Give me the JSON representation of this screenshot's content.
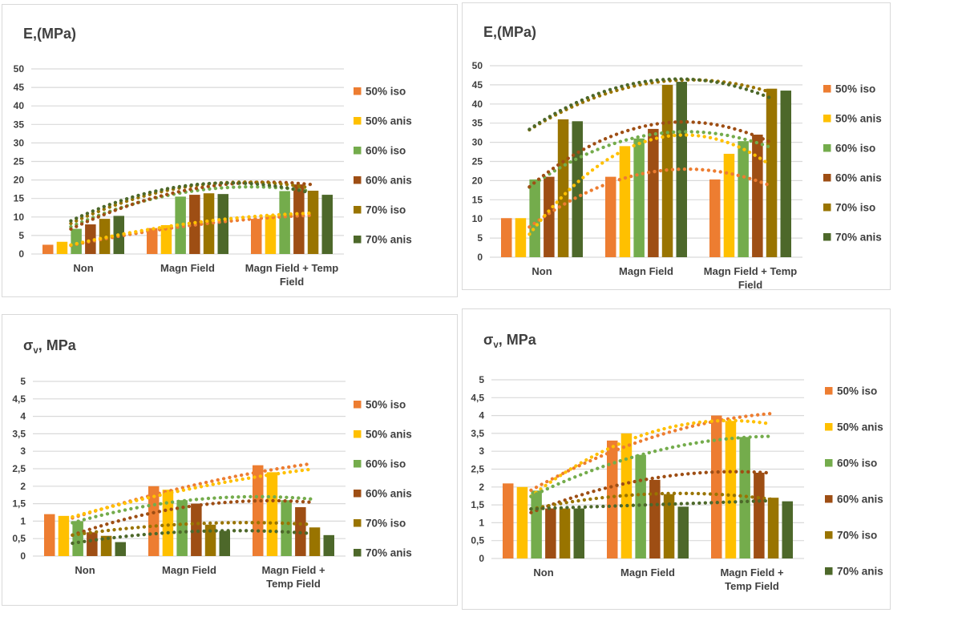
{
  "colors": {
    "background": "#FFFFFF",
    "panel_border": "#D9D9D9",
    "grid": "#D9D9D9",
    "text": "#404040"
  },
  "legend": {
    "position": "right",
    "entries": [
      "50% iso",
      "50% anis",
      "60% iso",
      "60% anis",
      "70% iso",
      "70% anis"
    ]
  },
  "series_palette": [
    {
      "name": "50% iso",
      "color": "#ED7D31"
    },
    {
      "name": "50% anis",
      "color": "#FFC000"
    },
    {
      "name": "60% iso",
      "color": "#74AC4C"
    },
    {
      "name": "60% anis",
      "color": "#9E4E14"
    },
    {
      "name": "70% iso",
      "color": "#997400"
    },
    {
      "name": "70% anis",
      "color": "#4D682A"
    }
  ],
  "chart_data": [
    {
      "id": "e-mpa-left",
      "type": "bar",
      "title": "E,(MPa)",
      "title_parts": null,
      "xlabel": "",
      "ylabel": "E,(MPa)",
      "ylim": [
        0,
        50
      ],
      "ystep": 5,
      "decimal_comma": false,
      "grid": true,
      "legend_position": "right",
      "categories": [
        "Non",
        "Magn Field",
        "Magn Field + Temp Field"
      ],
      "category_label_lines": [
        [
          "Non"
        ],
        [
          "Magn Field"
        ],
        [
          "Magn Field + Temp",
          "Field"
        ]
      ],
      "series": [
        {
          "name": "50% iso",
          "color": "#ED7D31",
          "values": [
            2.5,
            7.0,
            9.5
          ],
          "trend": [
            3.0,
            7.6,
            10.2
          ]
        },
        {
          "name": "50% anis",
          "color": "#FFC000",
          "values": [
            3.3,
            7.8,
            10.5
          ],
          "trend": [
            3.2,
            8.2,
            10.8
          ]
        },
        {
          "name": "60% iso",
          "color": "#74AC4C",
          "values": [
            6.8,
            15.5,
            17.0
          ],
          "trend": [
            8.8,
            16.8,
            17.6
          ]
        },
        {
          "name": "60% anis",
          "color": "#9E4E14",
          "values": [
            8.0,
            16.0,
            18.8
          ],
          "trend": [
            8.3,
            17.3,
            19.2
          ]
        },
        {
          "name": "70% iso",
          "color": "#997400",
          "values": [
            9.5,
            16.4,
            17.1
          ],
          "trend": [
            9.8,
            18.2,
            18.6
          ]
        },
        {
          "name": "70% anis",
          "color": "#4D682A",
          "values": [
            10.3,
            16.2,
            16.0
          ],
          "trend": [
            10.5,
            18.5,
            17.6
          ]
        }
      ]
    },
    {
      "id": "e-mpa-right",
      "type": "bar",
      "title": "E,(MPa)",
      "title_parts": null,
      "xlabel": "",
      "ylabel": "E,(MPa)",
      "ylim": [
        0,
        50
      ],
      "ystep": 5,
      "decimal_comma": false,
      "grid": true,
      "legend_position": "right",
      "categories": [
        "Non",
        "Magn Field",
        "Magn Field + Temp Field"
      ],
      "category_label_lines": [
        [
          "Non"
        ],
        [
          "Magn Field"
        ],
        [
          "Magn Field + Temp",
          "Field"
        ]
      ],
      "series": [
        {
          "name": "50% iso",
          "color": "#ED7D31",
          "values": [
            10.2,
            21.0,
            20.3
          ],
          "trend": [
            10.2,
            22.0,
            20.5
          ]
        },
        {
          "name": "50% anis",
          "color": "#FFC000",
          "values": [
            10.2,
            29.0,
            27.0
          ],
          "trend": [
            10.0,
            30.3,
            27.3
          ]
        },
        {
          "name": "60% iso",
          "color": "#74AC4C",
          "values": [
            20.3,
            31.0,
            30.3
          ],
          "trend": [
            20.5,
            31.8,
            30.4
          ]
        },
        {
          "name": "60% anis",
          "color": "#9E4E14",
          "values": [
            21.0,
            33.5,
            32.0
          ],
          "trend": [
            21.0,
            34.3,
            32.2
          ]
        },
        {
          "name": "70% iso",
          "color": "#997400",
          "values": [
            36.0,
            45.0,
            44.0
          ],
          "trend": [
            35.2,
            45.3,
            44.5
          ]
        },
        {
          "name": "70% anis",
          "color": "#4D682A",
          "values": [
            35.5,
            45.8,
            43.5
          ],
          "trend": [
            35.5,
            45.9,
            43.5
          ]
        }
      ]
    },
    {
      "id": "sigma-left",
      "type": "bar",
      "title": "σv, MPa",
      "title_parts": {
        "main": "σ",
        "sub": "v",
        "rest": ", MPa"
      },
      "xlabel": "",
      "ylabel": "σv, MPa",
      "ylim": [
        0,
        5
      ],
      "ystep": 0.5,
      "decimal_comma": true,
      "grid": true,
      "legend_position": "right",
      "categories": [
        "Non",
        "Magn Field",
        "Magn Field + Temp Field"
      ],
      "category_label_lines": [
        [
          "Non"
        ],
        [
          "Magn Field"
        ],
        [
          "Magn Field +",
          "Temp Field"
        ]
      ],
      "series": [
        {
          "name": "50% iso",
          "color": "#ED7D31",
          "values": [
            1.2,
            2.0,
            2.6
          ],
          "trend": [
            1.2,
            2.0,
            2.57
          ]
        },
        {
          "name": "50% anis",
          "color": "#FFC000",
          "values": [
            1.15,
            1.9,
            2.4
          ],
          "trend": [
            1.22,
            1.92,
            2.42
          ]
        },
        {
          "name": "60% iso",
          "color": "#74AC4C",
          "values": [
            1.0,
            1.6,
            1.6
          ],
          "trend": [
            1.05,
            1.6,
            1.67
          ]
        },
        {
          "name": "60% anis",
          "color": "#9E4E14",
          "values": [
            0.68,
            1.5,
            1.4
          ],
          "trend": [
            0.72,
            1.42,
            1.57
          ]
        },
        {
          "name": "70% iso",
          "color": "#997400",
          "values": [
            0.58,
            0.9,
            0.82
          ],
          "trend": [
            0.65,
            0.92,
            0.93
          ]
        },
        {
          "name": "70% anis",
          "color": "#4D682A",
          "values": [
            0.4,
            0.72,
            0.6
          ],
          "trend": [
            0.42,
            0.7,
            0.68
          ]
        }
      ]
    },
    {
      "id": "sigma-right",
      "type": "bar",
      "title": "σv, MPa",
      "title_parts": {
        "main": "σ",
        "sub": "v",
        "rest": ", MPa"
      },
      "xlabel": "",
      "ylabel": "σv, MPa",
      "ylim": [
        0,
        5
      ],
      "ystep": 0.5,
      "decimal_comma": true,
      "grid": true,
      "legend_position": "right",
      "categories": [
        "Non",
        "Magn Field",
        "Magn Field + Temp Field"
      ],
      "category_label_lines": [
        [
          "Non"
        ],
        [
          "Magn Field"
        ],
        [
          "Magn Field +",
          "Temp Field"
        ]
      ],
      "series": [
        {
          "name": "50% iso",
          "color": "#ED7D31",
          "values": [
            2.1,
            3.3,
            4.0
          ],
          "trend": [
            2.1,
            3.35,
            4.0
          ]
        },
        {
          "name": "50% anis",
          "color": "#FFC000",
          "values": [
            2.0,
            3.5,
            3.85
          ],
          "trend": [
            2.0,
            3.5,
            3.83
          ]
        },
        {
          "name": "60% iso",
          "color": "#74AC4C",
          "values": [
            1.9,
            2.9,
            3.4
          ],
          "trend": [
            1.9,
            2.95,
            3.4
          ]
        },
        {
          "name": "60% anis",
          "color": "#9E4E14",
          "values": [
            1.4,
            2.2,
            2.4
          ],
          "trend": [
            1.42,
            2.22,
            2.42
          ]
        },
        {
          "name": "70% iso",
          "color": "#997400",
          "values": [
            1.4,
            1.8,
            1.7
          ],
          "trend": [
            1.45,
            1.8,
            1.72
          ]
        },
        {
          "name": "70% anis",
          "color": "#4D682A",
          "values": [
            1.4,
            1.45,
            1.6
          ],
          "trend": [
            1.4,
            1.5,
            1.6
          ]
        }
      ]
    }
  ]
}
